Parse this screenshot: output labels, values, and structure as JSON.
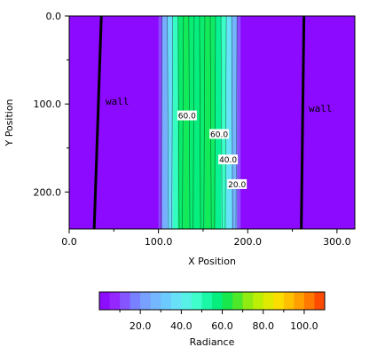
{
  "chart_data": {
    "type": "heatmap",
    "title": "",
    "xlabel": "X Position",
    "ylabel": "Y Position",
    "xlim": [
      0,
      320
    ],
    "ylim": [
      0,
      242
    ],
    "y_inverted": true,
    "x_ticks": [
      "0.0",
      "100.0",
      "200.0",
      "300.0"
    ],
    "y_ticks": [
      "0.0",
      "100.0",
      "200.0"
    ],
    "colorbar": {
      "label": "Radiance",
      "range": [
        0,
        110
      ],
      "ticks": [
        "20.0",
        "40.0",
        "60.0",
        "80.0",
        "100.0"
      ]
    },
    "profile": {
      "x": [
        0,
        100,
        104,
        110,
        116,
        122,
        128,
        134,
        140,
        146,
        152,
        158,
        164,
        170,
        176,
        182,
        188,
        192,
        320
      ],
      "radiance": [
        2,
        2,
        20,
        30,
        42,
        56,
        62,
        60,
        57,
        58,
        60,
        62,
        58,
        52,
        44,
        32,
        22,
        2,
        2
      ]
    },
    "walls": [
      {
        "label": "wall",
        "x_top": 36,
        "x_bottom": 28
      },
      {
        "label": "wall",
        "x_top": 263,
        "x_bottom": 260
      }
    ],
    "contour_labels": [
      {
        "text": "60.0",
        "x": 132,
        "y": 113
      },
      {
        "text": "60.0",
        "x": 168,
        "y": 134
      },
      {
        "text": "40.0",
        "x": 178,
        "y": 163
      },
      {
        "text": "20.0",
        "x": 188,
        "y": 191
      }
    ]
  }
}
